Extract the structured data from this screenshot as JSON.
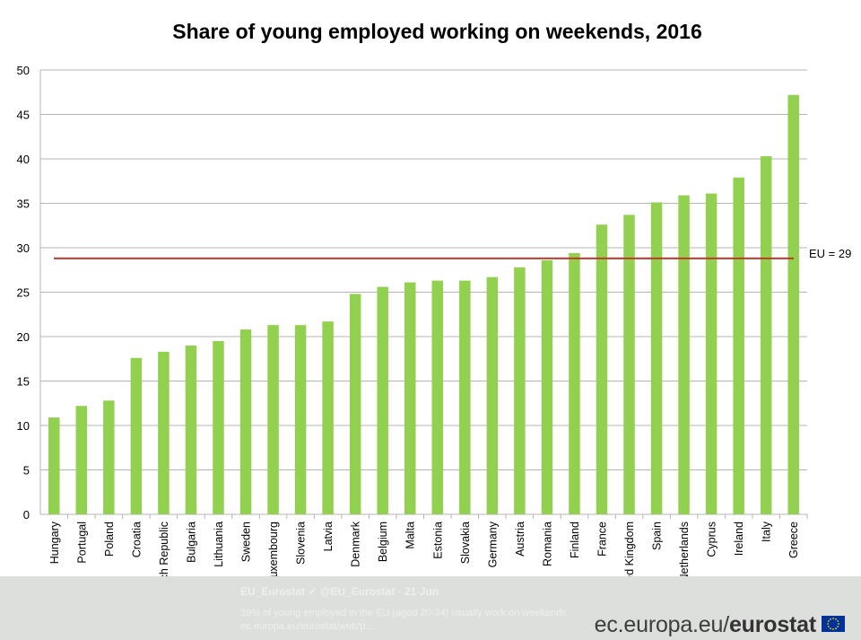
{
  "chart_data": {
    "type": "bar",
    "title": "Share of young employed working on weekends, 2016",
    "xlabel": "",
    "ylabel": "",
    "ylim": [
      0,
      50
    ],
    "yticks": [
      0,
      5,
      10,
      15,
      20,
      25,
      30,
      35,
      40,
      45,
      50
    ],
    "grid": true,
    "categories": [
      "Hungary",
      "Portugal",
      "Poland",
      "Croatia",
      "Czech Republic",
      "Bulgaria",
      "Lithuania",
      "Sweden",
      "Luxembourg",
      "Slovenia",
      "Latvia",
      "Denmark",
      "Belgium",
      "Malta",
      "Estonia",
      "Slovakia",
      "Germany",
      "Austria",
      "Romania",
      "Finland",
      "France",
      "United Kingdom",
      "Spain",
      "Netherlands",
      "Cyprus",
      "Ireland",
      "Italy",
      "Greece"
    ],
    "values": [
      10.9,
      12.2,
      12.8,
      17.6,
      18.3,
      19.0,
      19.5,
      20.8,
      21.3,
      21.3,
      21.7,
      24.8,
      25.6,
      26.1,
      26.3,
      26.3,
      26.7,
      27.8,
      28.6,
      29.4,
      32.6,
      33.7,
      35.1,
      35.9,
      36.1,
      37.9,
      40.3,
      47.2
    ],
    "bar_color": "#92d050",
    "reference_line": {
      "value": 28.8,
      "label": "EU = 29",
      "color": "#c0392b"
    }
  },
  "footer": {
    "tweet_name": "EU_Eurostat ✔ @EU_Eurostat · 21 Jun",
    "tweet_text": "29% of young employed in the EU (aged 20-34) usually work on weekends ec.europa.eu/eurostat/web/p...",
    "brand_prefix": "ec.europa.eu/",
    "brand_suffix": "eurostat",
    "background_color": "#dcdfdc"
  }
}
